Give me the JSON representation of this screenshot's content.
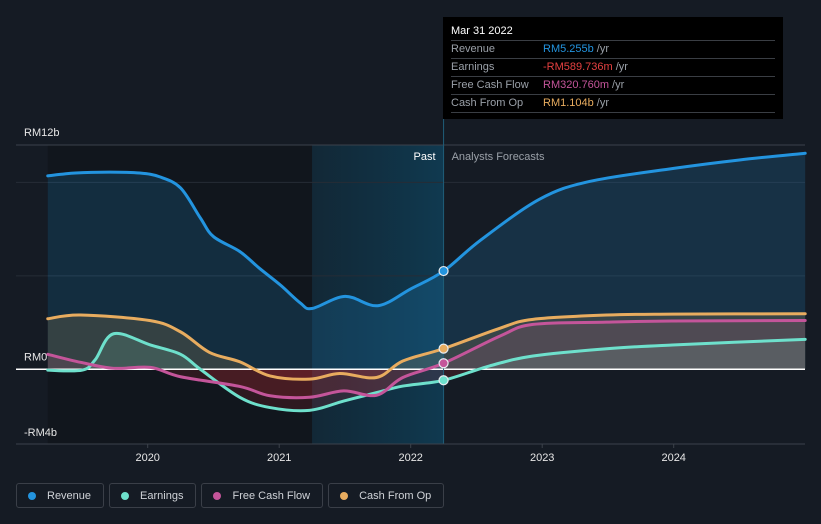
{
  "tooltip": {
    "date": "Mar 31 2022",
    "rows": [
      {
        "label": "Revenue",
        "value": "RM5.255b",
        "unit": "/yr",
        "color": "#2394df"
      },
      {
        "label": "Earnings",
        "value": "-RM589.736m",
        "unit": "/yr",
        "color": "#e64141"
      },
      {
        "label": "Free Cash Flow",
        "value": "RM320.760m",
        "unit": "/yr",
        "color": "#c4559a"
      },
      {
        "label": "Cash From Op",
        "value": "RM1.104b",
        "unit": "/yr",
        "color": "#e8ac5f"
      }
    ]
  },
  "chart_data": {
    "type": "line",
    "title": "",
    "xlabel": "",
    "ylabel": "",
    "xlim": [
      2019.0,
      2025.1
    ],
    "ylim": [
      -4,
      12
    ],
    "y_tick_labels": [
      {
        "value": 12,
        "label": "RM12b"
      },
      {
        "value": 0,
        "label": "RM0"
      },
      {
        "value": -4,
        "label": "-RM4b"
      }
    ],
    "y_gridlines": [
      12,
      10,
      5
    ],
    "x_ticks": [
      {
        "value": 2020,
        "label": "2020"
      },
      {
        "value": 2021,
        "label": "2021"
      },
      {
        "value": 2022,
        "label": "2022"
      },
      {
        "value": 2023,
        "label": "2023"
      },
      {
        "value": 2024,
        "label": "2024"
      }
    ],
    "past_label": "Past",
    "forecast_label": "Analysts Forecasts",
    "divider_x": 2022.25,
    "highlight_range": [
      2021.25,
      2022.25
    ],
    "unit": "RM billions",
    "series": [
      {
        "name": "Revenue",
        "color": "#2394df",
        "points": [
          [
            2019.24,
            10.35
          ],
          [
            2019.45,
            10.5
          ],
          [
            2019.71,
            10.55
          ],
          [
            2019.94,
            10.5
          ],
          [
            2020.09,
            10.3
          ],
          [
            2020.25,
            9.7
          ],
          [
            2020.4,
            8.1
          ],
          [
            2020.5,
            7.1
          ],
          [
            2020.7,
            6.3
          ],
          [
            2020.85,
            5.4
          ],
          [
            2021.01,
            4.5
          ],
          [
            2021.16,
            3.55
          ],
          [
            2021.25,
            3.25
          ],
          [
            2021.5,
            3.9
          ],
          [
            2021.75,
            3.4
          ],
          [
            2022.0,
            4.3
          ],
          [
            2022.25,
            5.255
          ],
          [
            2022.53,
            6.9
          ],
          [
            2022.98,
            9.1
          ],
          [
            2023.36,
            10.05
          ],
          [
            2024.0,
            10.75
          ],
          [
            2024.5,
            11.2
          ],
          [
            2025.0,
            11.56
          ]
        ]
      },
      {
        "name": "Earnings",
        "color": "#6ee0cc",
        "points": [
          [
            2019.24,
            -0.05
          ],
          [
            2019.5,
            -0.05
          ],
          [
            2019.6,
            0.5
          ],
          [
            2019.74,
            1.9
          ],
          [
            2020.02,
            1.3
          ],
          [
            2020.25,
            0.8
          ],
          [
            2020.4,
            0.0
          ],
          [
            2020.7,
            -1.5
          ],
          [
            2020.93,
            -2.05
          ],
          [
            2021.23,
            -2.2
          ],
          [
            2021.49,
            -1.7
          ],
          [
            2021.74,
            -1.25
          ],
          [
            2021.94,
            -0.9
          ],
          [
            2022.25,
            -0.59
          ],
          [
            2022.6,
            0.18
          ],
          [
            2022.93,
            0.71
          ],
          [
            2023.49,
            1.1
          ],
          [
            2023.99,
            1.3
          ],
          [
            2025.0,
            1.6
          ]
        ]
      },
      {
        "name": "Free Cash Flow",
        "color": "#c4559a",
        "points": [
          [
            2019.24,
            0.8
          ],
          [
            2019.49,
            0.37
          ],
          [
            2019.74,
            0.05
          ],
          [
            2020.02,
            0.1
          ],
          [
            2020.25,
            -0.4
          ],
          [
            2020.7,
            -0.92
          ],
          [
            2020.93,
            -1.42
          ],
          [
            2021.23,
            -1.5
          ],
          [
            2021.49,
            -1.16
          ],
          [
            2021.74,
            -1.39
          ],
          [
            2021.94,
            -0.44
          ],
          [
            2022.25,
            0.321
          ],
          [
            2022.68,
            1.78
          ],
          [
            2022.93,
            2.4
          ],
          [
            2023.49,
            2.52
          ],
          [
            2023.99,
            2.58
          ],
          [
            2025.0,
            2.61
          ]
        ]
      },
      {
        "name": "Cash From Op",
        "color": "#e8ac5f",
        "points": [
          [
            2019.24,
            2.7
          ],
          [
            2019.49,
            2.9
          ],
          [
            2020.02,
            2.6
          ],
          [
            2020.25,
            2.0
          ],
          [
            2020.47,
            0.9
          ],
          [
            2020.7,
            0.4
          ],
          [
            2020.93,
            -0.36
          ],
          [
            2021.23,
            -0.53
          ],
          [
            2021.46,
            -0.23
          ],
          [
            2021.74,
            -0.44
          ],
          [
            2021.94,
            0.44
          ],
          [
            2022.25,
            1.104
          ],
          [
            2022.68,
            2.2
          ],
          [
            2022.93,
            2.67
          ],
          [
            2023.49,
            2.9
          ],
          [
            2023.99,
            2.95
          ],
          [
            2025.0,
            2.97
          ]
        ]
      }
    ],
    "legend": {
      "placement": "bottom-left",
      "items": [
        {
          "label": "Revenue",
          "color": "#2394df"
        },
        {
          "label": "Earnings",
          "color": "#6ee0cc"
        },
        {
          "label": "Free Cash Flow",
          "color": "#c4559a"
        },
        {
          "label": "Cash From Op",
          "color": "#e8ac5f"
        }
      ]
    }
  }
}
